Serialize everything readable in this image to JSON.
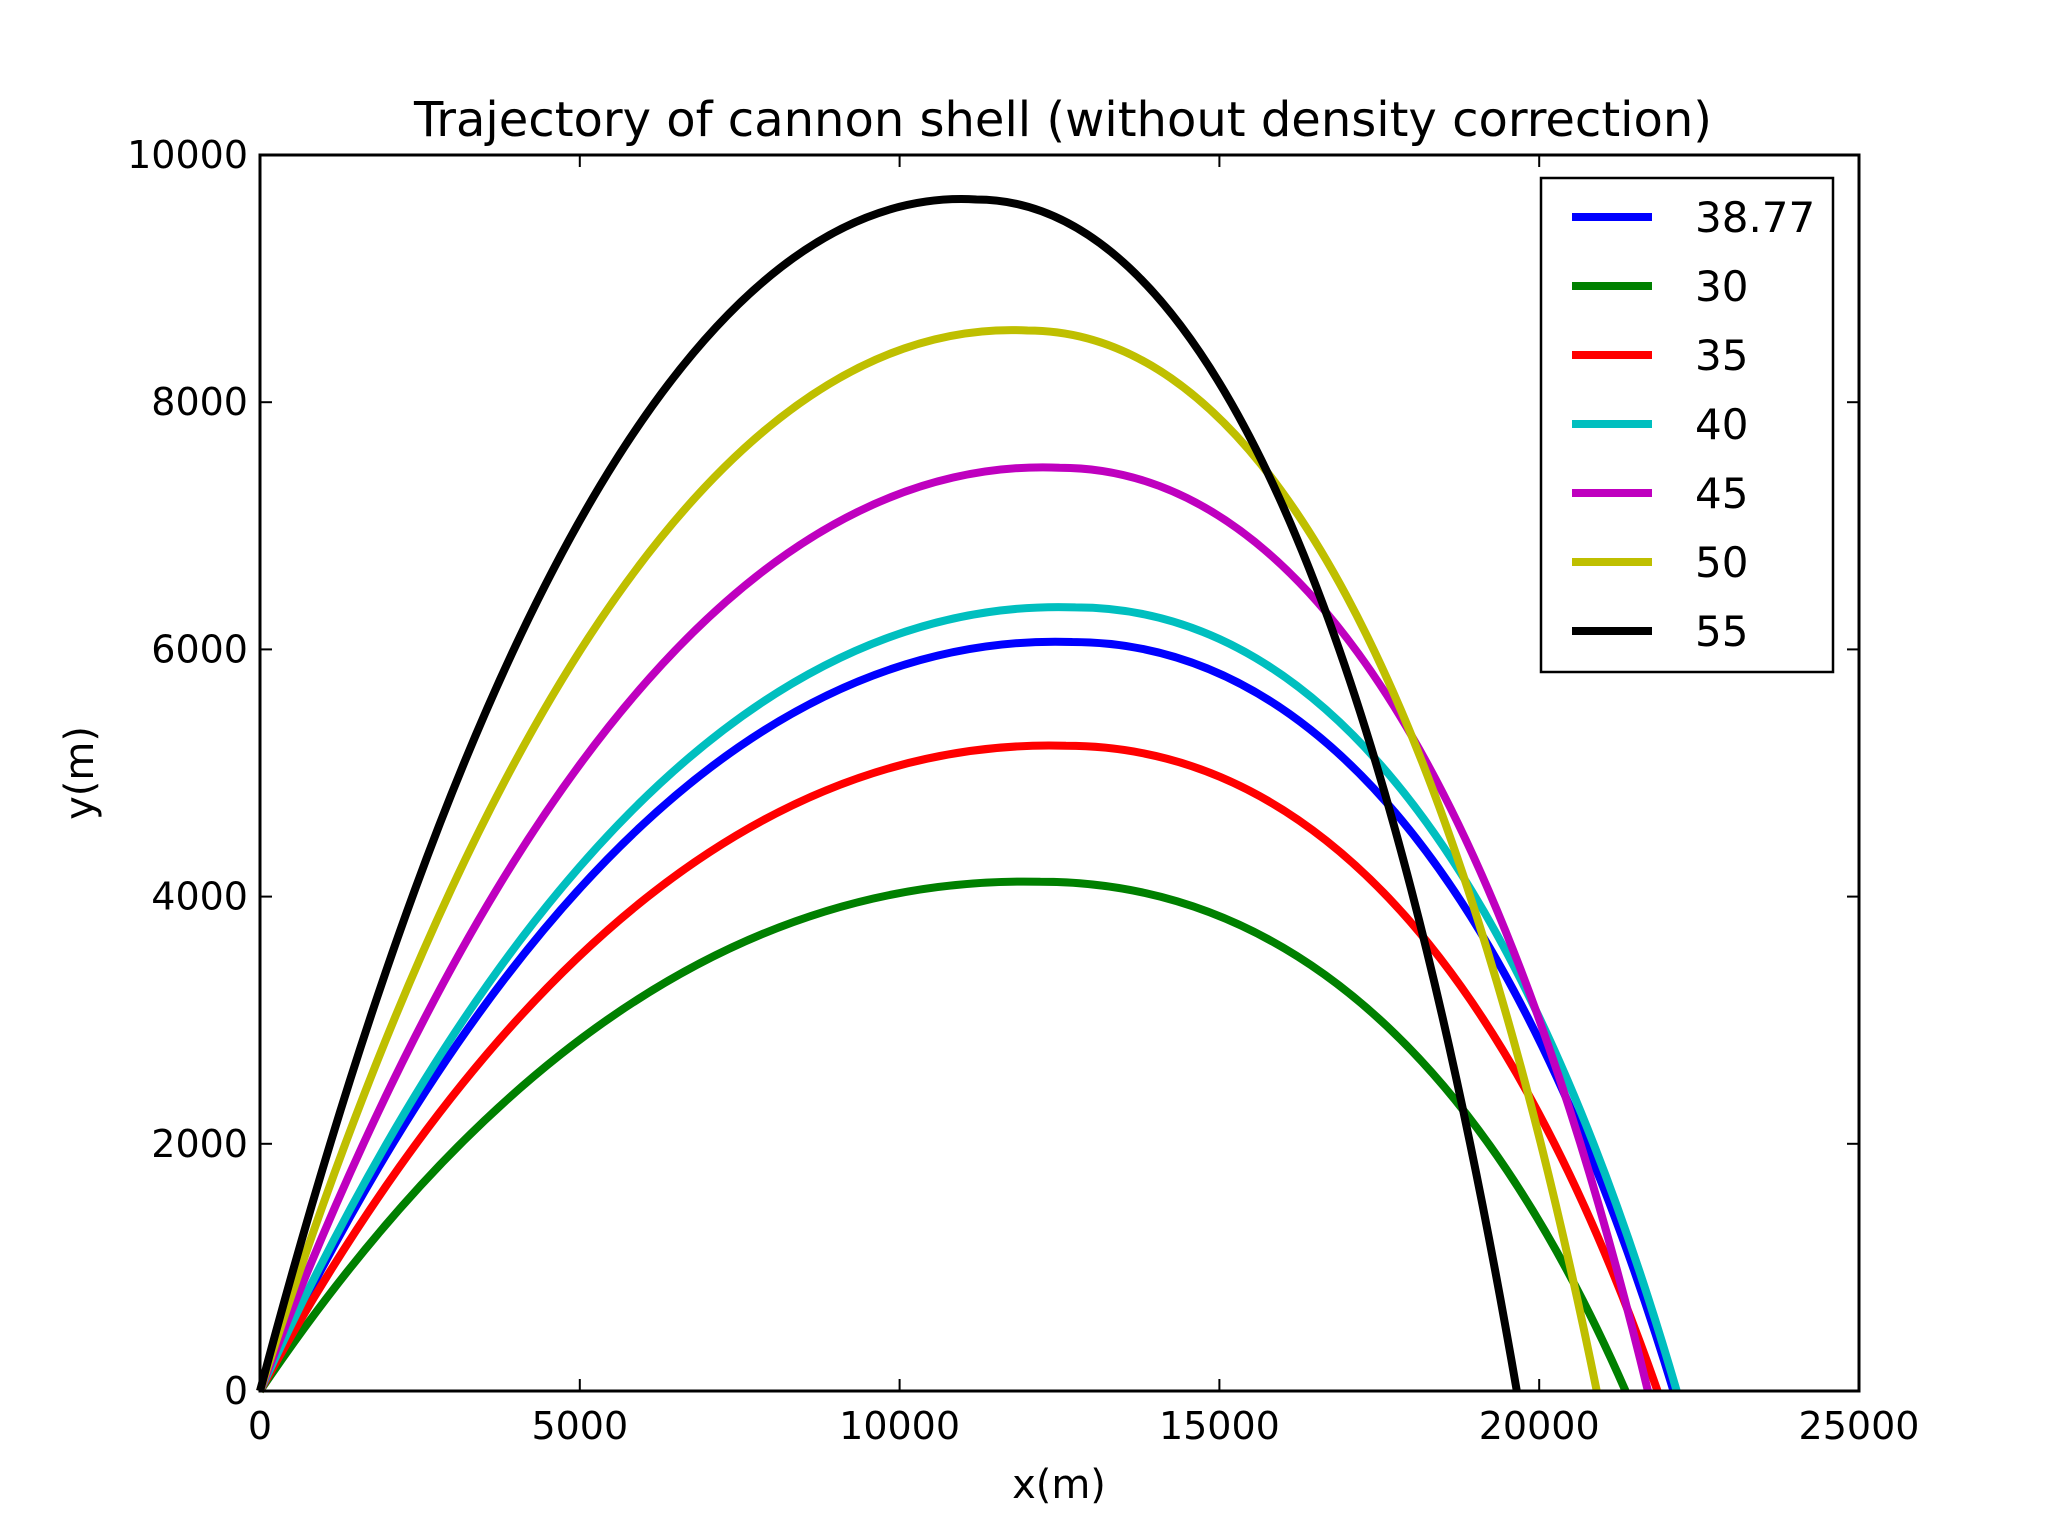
{
  "chart_data": {
    "type": "line",
    "title": "Trajectory of cannon shell (without density correction)",
    "xlabel": "x(m)",
    "ylabel": "y(m)",
    "xlim": [
      0,
      25000
    ],
    "ylim": [
      0,
      10000
    ],
    "xticks": [
      0,
      5000,
      10000,
      15000,
      20000,
      25000
    ],
    "yticks": [
      0,
      2000,
      4000,
      6000,
      8000,
      10000
    ],
    "xtick_labels": [
      "0",
      "5000",
      "10000",
      "15000",
      "20000",
      "25000"
    ],
    "ytick_labels": [
      "0",
      "2000",
      "4000",
      "6000",
      "8000",
      "10000"
    ],
    "grid": false,
    "legend_position": "top-right",
    "series": [
      {
        "name": "38.77",
        "color": "#0000ff",
        "peak": [
          12700,
          6060
        ],
        "range": 22100
      },
      {
        "name": "30",
        "color": "#008000",
        "peak": [
          12200,
          4120
        ],
        "range": 21350
      },
      {
        "name": "35",
        "color": "#ff0000",
        "peak": [
          12600,
          5220
        ],
        "range": 21850
      },
      {
        "name": "40",
        "color": "#00bfbf",
        "peak": [
          12750,
          6340
        ],
        "range": 22150
      },
      {
        "name": "45",
        "color": "#bf00bf",
        "peak": [
          12500,
          7470
        ],
        "range": 21700
      },
      {
        "name": "50",
        "color": "#bfbf00",
        "peak": [
          12000,
          8580
        ],
        "range": 20900
      },
      {
        "name": "55",
        "color": "#000000",
        "peak": [
          11200,
          9640
        ],
        "range": 19650
      }
    ]
  }
}
